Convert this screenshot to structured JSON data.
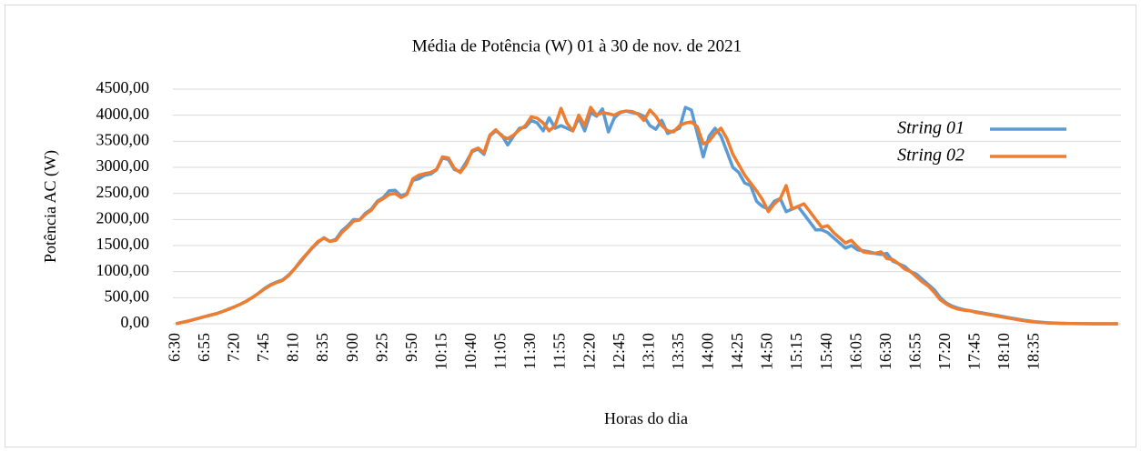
{
  "chart_data": {
    "type": "line",
    "title": "Média de Potência (W) 01 à 30 de nov. de 2021",
    "x_label": "Horas do dia",
    "y_label": "Potência AC (W)",
    "categories": [
      "6:30",
      null,
      null,
      null,
      null,
      "6:55",
      null,
      null,
      null,
      null,
      "7:20",
      null,
      null,
      null,
      null,
      "7:45",
      null,
      null,
      null,
      null,
      "8:10",
      null,
      null,
      null,
      null,
      "8:35",
      null,
      null,
      null,
      null,
      "9:00",
      null,
      null,
      null,
      null,
      "9:25",
      null,
      null,
      null,
      null,
      "9:50",
      null,
      null,
      null,
      null,
      "10:15",
      null,
      null,
      null,
      null,
      "10:40",
      null,
      null,
      null,
      null,
      "11:05",
      null,
      null,
      null,
      null,
      "11:30",
      null,
      null,
      null,
      null,
      "11:55",
      null,
      null,
      null,
      null,
      "12:20",
      null,
      null,
      null,
      null,
      "12:45",
      null,
      null,
      null,
      null,
      "13:10",
      null,
      null,
      null,
      null,
      "13:35",
      null,
      null,
      null,
      null,
      "14:00",
      null,
      null,
      null,
      null,
      "14:25",
      null,
      null,
      null,
      null,
      "14:50",
      null,
      null,
      null,
      null,
      "15:15",
      null,
      null,
      null,
      null,
      "15:40",
      null,
      null,
      null,
      null,
      "16:05",
      null,
      null,
      null,
      null,
      "16:30",
      null,
      null,
      null,
      null,
      "16:55",
      null,
      null,
      null,
      null,
      "17:20",
      null,
      null,
      null,
      null,
      "17:45",
      null,
      null,
      null,
      null,
      "18:10",
      null,
      null,
      null,
      null,
      "18:35",
      null,
      null,
      null,
      null,
      null,
      null,
      null,
      null,
      null,
      null,
      null,
      null,
      null,
      null
    ],
    "series": [
      {
        "name": "String 01",
        "color": "#5b9bd5",
        "values": [
          0,
          25,
          50,
          80,
          110,
          140,
          170,
          200,
          240,
          285,
          330,
          380,
          440,
          510,
          590,
          680,
          750,
          800,
          840,
          930,
          1050,
          1180,
          1320,
          1450,
          1560,
          1650,
          1580,
          1620,
          1780,
          1880,
          2000,
          1990,
          2120,
          2200,
          2350,
          2420,
          2550,
          2560,
          2450,
          2500,
          2750,
          2780,
          2850,
          2870,
          2950,
          3180,
          3150,
          2960,
          2920,
          3100,
          3300,
          3350,
          3250,
          3600,
          3700,
          3620,
          3430,
          3600,
          3750,
          3770,
          3900,
          3850,
          3700,
          3950,
          3750,
          3800,
          3750,
          3700,
          3950,
          3700,
          4050,
          3980,
          4120,
          3680,
          3950,
          4050,
          4080,
          4050,
          4030,
          3980,
          3800,
          3730,
          3900,
          3650,
          3700,
          3750,
          4150,
          4100,
          3650,
          3200,
          3600,
          3750,
          3600,
          3300,
          3000,
          2900,
          2700,
          2650,
          2350,
          2250,
          2200,
          2350,
          2400,
          2150,
          2200,
          2250,
          2100,
          1950,
          1800,
          1800,
          1750,
          1650,
          1550,
          1450,
          1500,
          1420,
          1400,
          1380,
          1350,
          1330,
          1350,
          1200,
          1150,
          1100,
          1000,
          950,
          850,
          750,
          650,
          500,
          400,
          340,
          300,
          270,
          250,
          230,
          210,
          190,
          170,
          150,
          130,
          110,
          90,
          70,
          55,
          40,
          30,
          20,
          15,
          10,
          8,
          5,
          4,
          3,
          2,
          1,
          1,
          0,
          0,
          0
        ]
      },
      {
        "name": "String 02",
        "color": "#ed7d31",
        "values": [
          0,
          25,
          50,
          80,
          110,
          140,
          170,
          200,
          240,
          280,
          330,
          380,
          440,
          510,
          590,
          670,
          740,
          790,
          830,
          920,
          1050,
          1200,
          1330,
          1460,
          1580,
          1640,
          1580,
          1600,
          1750,
          1850,
          1970,
          1990,
          2100,
          2180,
          2330,
          2400,
          2480,
          2500,
          2420,
          2480,
          2780,
          2850,
          2880,
          2900,
          2960,
          3200,
          3180,
          2980,
          2900,
          3050,
          3320,
          3370,
          3280,
          3620,
          3720,
          3600,
          3550,
          3620,
          3720,
          3800,
          3970,
          3940,
          3850,
          3700,
          3800,
          4130,
          3850,
          3700,
          4000,
          3800,
          4150,
          4000,
          4050,
          4030,
          4000,
          4060,
          4080,
          4070,
          4020,
          3900,
          4100,
          3980,
          3800,
          3700,
          3680,
          3800,
          3850,
          3870,
          3780,
          3450,
          3500,
          3650,
          3750,
          3550,
          3250,
          3050,
          2850,
          2700,
          2550,
          2380,
          2150,
          2300,
          2400,
          2650,
          2200,
          2250,
          2300,
          2150,
          2000,
          1850,
          1880,
          1750,
          1650,
          1550,
          1600,
          1480,
          1380,
          1360,
          1350,
          1380,
          1250,
          1230,
          1150,
          1050,
          1000,
          900,
          800,
          720,
          600,
          460,
          380,
          320,
          280,
          260,
          250,
          220,
          200,
          180,
          160,
          140,
          120,
          100,
          80,
          60,
          45,
          35,
          25,
          18,
          12,
          8,
          5,
          4,
          3,
          2,
          1,
          1,
          0,
          0,
          0,
          0
        ]
      }
    ],
    "ylim": [
      0,
      4500
    ],
    "yticks": [
      {
        "value": 0,
        "label": "0,00"
      },
      {
        "value": 500,
        "label": "500,00"
      },
      {
        "value": 1000,
        "label": "1000,00"
      },
      {
        "value": 1500,
        "label": "1500,00"
      },
      {
        "value": 2000,
        "label": "2000,00"
      },
      {
        "value": 2500,
        "label": "2500,00"
      },
      {
        "value": 3000,
        "label": "3000,00"
      },
      {
        "value": 3500,
        "label": "3500,00"
      },
      {
        "value": 4000,
        "label": "4000,00"
      },
      {
        "value": 4500,
        "label": "4500,00"
      }
    ],
    "grid": true,
    "legend_position": "upper right"
  }
}
